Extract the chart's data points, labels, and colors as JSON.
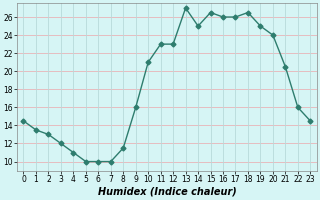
{
  "x": [
    0,
    1,
    2,
    3,
    4,
    5,
    6,
    7,
    8,
    9,
    10,
    11,
    12,
    13,
    14,
    15,
    16,
    17,
    18,
    19,
    20,
    21,
    22,
    23
  ],
  "y": [
    14.5,
    13.5,
    13,
    12,
    11,
    10,
    10,
    10,
    11.5,
    16,
    21,
    23,
    23,
    27,
    25,
    26.5,
    26,
    26,
    26.5,
    25,
    24,
    20.5,
    16,
    14.5
  ],
  "line_color": "#2e7d6e",
  "marker": "D",
  "marker_size": 2.5,
  "bg_color": "#d6f5f5",
  "grid_color_h": "#e8b4b8",
  "grid_color_v": "#b8dada",
  "xlabel": "Humidex (Indice chaleur)",
  "xlim": [
    -0.5,
    23.5
  ],
  "ylim": [
    9,
    27.5
  ],
  "yticks": [
    10,
    12,
    14,
    16,
    18,
    20,
    22,
    24,
    26
  ],
  "xticks": [
    0,
    1,
    2,
    3,
    4,
    5,
    6,
    7,
    8,
    9,
    10,
    11,
    12,
    13,
    14,
    15,
    16,
    17,
    18,
    19,
    20,
    21,
    22,
    23
  ],
  "tick_label_fontsize": 5.5,
  "xlabel_fontsize": 7,
  "line_width": 1.0
}
